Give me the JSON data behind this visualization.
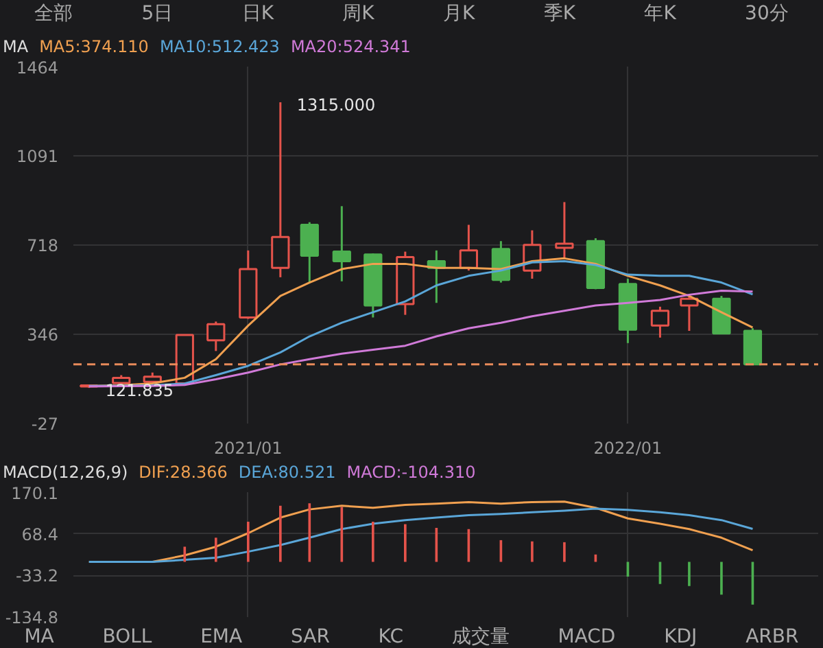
{
  "chart_data": [
    {
      "type": "candlestick",
      "title": "MA",
      "annotations": [
        "全部",
        "5日",
        "日K",
        "周K",
        "月K",
        "季K",
        "年K",
        "30分",
        {
          "text": "1315.000",
          "x": "2021-02",
          "y": 1315
        },
        {
          "text": "121.835",
          "x": "2020-08",
          "y": 121.835
        }
      ],
      "x": [
        "2020-08",
        "2020-09",
        "2020-10",
        "2020-11",
        "2020-12",
        "2021-01",
        "2021-02",
        "2021-03",
        "2021-04",
        "2021-05",
        "2021-06",
        "2021-07",
        "2021-08",
        "2021-09",
        "2021-10",
        "2021-11",
        "2021-12",
        "2022-01",
        "2022-02",
        "2022-03",
        "2022-04",
        "2022-05"
      ],
      "ohlc": [
        [
          128,
          135,
          121.835,
          132
        ],
        [
          142,
          175,
          138,
          164
        ],
        [
          147,
          186,
          143,
          169
        ],
        [
          141,
          345,
          138,
          343
        ],
        [
          321,
          399,
          276,
          388
        ],
        [
          416,
          696,
          410,
          618
        ],
        [
          623,
          1315,
          584,
          752
        ],
        [
          803,
          814,
          562,
          674
        ],
        [
          691,
          881,
          567,
          651
        ],
        [
          679,
          683,
          416,
          466
        ],
        [
          472,
          691,
          427,
          668
        ],
        [
          651,
          696,
          477,
          623
        ],
        [
          623,
          803,
          612,
          696
        ],
        [
          702,
          735,
          562,
          573
        ],
        [
          612,
          780,
          578,
          719
        ],
        [
          707,
          898,
          663,
          724
        ],
        [
          735,
          747,
          534,
          539
        ],
        [
          556,
          578,
          309,
          365
        ],
        [
          382,
          461,
          332,
          444
        ],
        [
          466,
          511,
          360,
          494
        ],
        [
          494,
          506,
          349,
          349
        ],
        [
          360,
          371,
          220,
          220
        ]
      ],
      "colors": [
        "#e5534b",
        "#e5534b",
        "#e5534b",
        "#e5534b",
        "#e5534b",
        "#e5534b",
        "#e5534b",
        "#4cb050",
        "#4cb050",
        "#4cb050",
        "#e5534b",
        "#4cb050",
        "#e5534b",
        "#4cb050",
        "#e5534b",
        "#e5534b",
        "#4cb050",
        "#4cb050",
        "#e5534b",
        "#e5534b",
        "#4cb050",
        "#4cb050"
      ],
      "series": [
        {
          "name": "MA5:374.110",
          "type": "line",
          "color": "#f0a050",
          "values": [
            130,
            133,
            141,
            164,
            242,
            382,
            506,
            562,
            618,
            640,
            640,
            623,
            623,
            618,
            651,
            663,
            640,
            590,
            550,
            506,
            438,
            374.11
          ]
        },
        {
          "name": "MA10:512.423",
          "type": "line",
          "color": "#5aa6d8",
          "values": [
            130,
            131,
            133,
            140,
            175,
            214,
            270,
            337,
            394,
            438,
            483,
            550,
            590,
            612,
            646,
            651,
            635,
            595,
            590,
            590,
            562,
            512.423
          ]
        },
        {
          "name": "MA20:524.341",
          "type": "line",
          "color": "#d07ad8",
          "values": [
            128,
            129,
            130,
            134,
            158,
            186,
            220,
            242,
            265,
            281,
            298,
            337,
            371,
            394,
            421,
            444,
            466,
            477,
            489,
            511,
            528,
            524.341
          ]
        }
      ],
      "ref_lines": [
        {
          "axis": "y",
          "value": 220,
          "color": "#e88a5a",
          "line_style": "dashed"
        }
      ],
      "xlim": [
        "2020-07-17",
        "2022-07-03"
      ],
      "xticks": [
        {
          "value": "2021-01",
          "label": "2021/01"
        },
        {
          "value": "2022-01",
          "label": "2022/01"
        }
      ],
      "ylim": [
        -27,
        1464
      ],
      "yticks": [
        1464,
        1091,
        718,
        346,
        -27
      ],
      "grid": true
    },
    {
      "type": "bar",
      "title": "MACD(12,26,9)",
      "annotations": [
        "MA",
        "BOLL",
        "EMA",
        "SAR",
        "KC",
        "成交量",
        "MACD",
        "KDJ",
        "ARBR"
      ],
      "x": [
        "2020-08",
        "2020-09",
        "2020-10",
        "2020-11",
        "2020-12",
        "2021-01",
        "2021-02",
        "2021-03",
        "2021-04",
        "2021-05",
        "2021-06",
        "2021-07",
        "2021-08",
        "2021-09",
        "2021-10",
        "2021-11",
        "2021-12",
        "2022-01",
        "2022-02",
        "2022-03",
        "2022-04",
        "2022-05"
      ],
      "series": [
        {
          "name": "DIF:28.366",
          "type": "line",
          "color": "#f0a050",
          "values": [
            0,
            0,
            0,
            16,
            37,
            70,
            108,
            128,
            137,
            132,
            139,
            142,
            146,
            142,
            146,
            147,
            132,
            106,
            93,
            80,
            59,
            28.366
          ]
        },
        {
          "name": "DEA:80.521",
          "type": "line",
          "color": "#5aa6d8",
          "values": [
            0,
            0,
            0,
            5,
            10,
            25,
            41,
            59,
            80,
            93,
            102,
            108,
            114,
            117,
            121,
            125,
            130,
            127,
            121,
            114,
            102,
            80.521
          ]
        },
        {
          "name": "MACD:-104.310",
          "type": "bar",
          "color": "#d07ad8",
          "colors": [
            "#e5534b",
            "#e5534b",
            "#e5534b",
            "#e5534b",
            "#e5534b",
            "#e5534b",
            "#e5534b",
            "#e5534b",
            "#e5534b",
            "#e5534b",
            "#e5534b",
            "#e5534b",
            "#e5534b",
            "#e5534b",
            "#e5534b",
            "#e5534b",
            "#e5534b",
            "#4cb050",
            "#4cb050",
            "#4cb050",
            "#4cb050",
            "#4cb050"
          ],
          "values": [
            null,
            null,
            null,
            37,
            59,
            98,
            137,
            143,
            134,
            98,
            92,
            83,
            80,
            53,
            50,
            48,
            18,
            -36,
            -54,
            -59,
            -80,
            -104.31
          ]
        }
      ],
      "xlim": [
        "2020-07-17",
        "2022-07-03"
      ],
      "xticks": [
        "2021-01",
        "2022-01"
      ],
      "ylim": [
        -134.8,
        170.1
      ],
      "yticks": [
        170.1,
        68.4,
        -33.2,
        -134.8
      ],
      "grid": true,
      "tick_labels": "y"
    }
  ]
}
